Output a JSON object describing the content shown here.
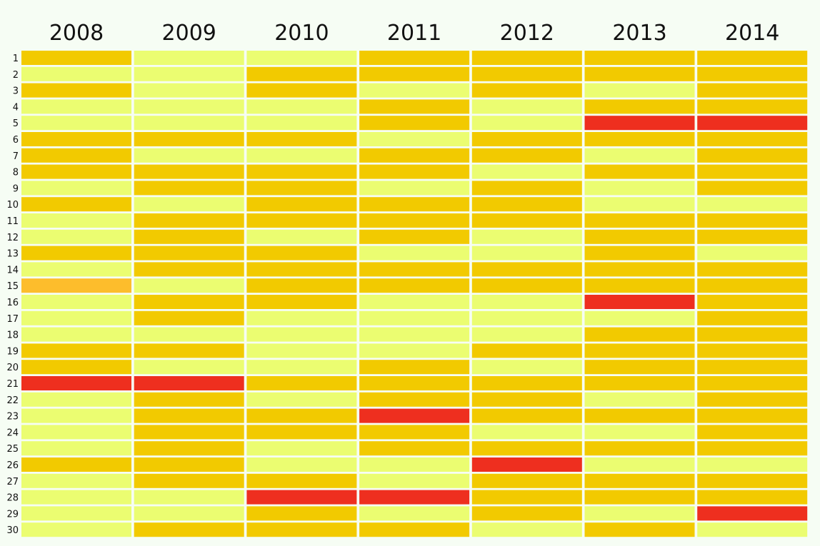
{
  "colors": {
    "background": "#f6fdf4",
    "light": "#ebfd71",
    "medium": "#f2ca00",
    "orange": "#fdbd2c",
    "red": "#ee2f1f",
    "text": "#111111"
  },
  "legend_map": {
    "L": "light",
    "Y": "medium",
    "O": "orange",
    "R": "red"
  },
  "chart_data": {
    "type": "heatmap",
    "title": "",
    "xlabel": "",
    "ylabel": "",
    "columns": [
      "2008",
      "2009",
      "2010",
      "2011",
      "2012",
      "2013",
      "2014"
    ],
    "rows": [
      "1",
      "2",
      "3",
      "4",
      "5",
      "6",
      "7",
      "8",
      "9",
      "10",
      "11",
      "12",
      "13",
      "14",
      "15",
      "16",
      "17",
      "18",
      "19",
      "20",
      "21",
      "22",
      "23",
      "24",
      "25",
      "26",
      "27",
      "28",
      "29",
      "30"
    ],
    "cells": [
      [
        "Y",
        "L",
        "L",
        "Y",
        "Y",
        "Y",
        "Y"
      ],
      [
        "L",
        "L",
        "Y",
        "Y",
        "Y",
        "Y",
        "Y"
      ],
      [
        "Y",
        "L",
        "Y",
        "L",
        "Y",
        "L",
        "Y"
      ],
      [
        "L",
        "L",
        "L",
        "Y",
        "L",
        "Y",
        "Y"
      ],
      [
        "L",
        "L",
        "L",
        "Y",
        "L",
        "R",
        "R"
      ],
      [
        "Y",
        "Y",
        "Y",
        "L",
        "Y",
        "Y",
        "Y"
      ],
      [
        "Y",
        "L",
        "L",
        "Y",
        "Y",
        "L",
        "Y"
      ],
      [
        "Y",
        "Y",
        "Y",
        "Y",
        "L",
        "Y",
        "Y"
      ],
      [
        "L",
        "Y",
        "Y",
        "L",
        "Y",
        "L",
        "Y"
      ],
      [
        "Y",
        "L",
        "Y",
        "Y",
        "Y",
        "L",
        "L"
      ],
      [
        "L",
        "Y",
        "Y",
        "Y",
        "Y",
        "Y",
        "Y"
      ],
      [
        "L",
        "Y",
        "L",
        "Y",
        "L",
        "Y",
        "Y"
      ],
      [
        "Y",
        "Y",
        "Y",
        "L",
        "L",
        "Y",
        "L"
      ],
      [
        "L",
        "Y",
        "Y",
        "Y",
        "Y",
        "Y",
        "Y"
      ],
      [
        "O",
        "L",
        "Y",
        "Y",
        "Y",
        "Y",
        "Y"
      ],
      [
        "L",
        "Y",
        "Y",
        "L",
        "L",
        "R",
        "Y"
      ],
      [
        "L",
        "Y",
        "L",
        "L",
        "L",
        "L",
        "Y"
      ],
      [
        "L",
        "L",
        "L",
        "L",
        "L",
        "Y",
        "Y"
      ],
      [
        "Y",
        "Y",
        "L",
        "L",
        "Y",
        "Y",
        "Y"
      ],
      [
        "Y",
        "L",
        "L",
        "Y",
        "L",
        "Y",
        "Y"
      ],
      [
        "R",
        "R",
        "Y",
        "Y",
        "Y",
        "Y",
        "Y"
      ],
      [
        "L",
        "Y",
        "L",
        "Y",
        "Y",
        "L",
        "Y"
      ],
      [
        "L",
        "Y",
        "Y",
        "R",
        "Y",
        "Y",
        "Y"
      ],
      [
        "L",
        "Y",
        "Y",
        "Y",
        "L",
        "L",
        "Y"
      ],
      [
        "L",
        "Y",
        "L",
        "Y",
        "Y",
        "Y",
        "Y"
      ],
      [
        "Y",
        "Y",
        "L",
        "L",
        "R",
        "L",
        "L"
      ],
      [
        "L",
        "Y",
        "Y",
        "L",
        "Y",
        "Y",
        "Y"
      ],
      [
        "L",
        "L",
        "R",
        "R",
        "Y",
        "Y",
        "Y"
      ],
      [
        "L",
        "L",
        "Y",
        "L",
        "Y",
        "L",
        "R"
      ],
      [
        "L",
        "Y",
        "Y",
        "Y",
        "L",
        "Y",
        "L"
      ]
    ]
  }
}
